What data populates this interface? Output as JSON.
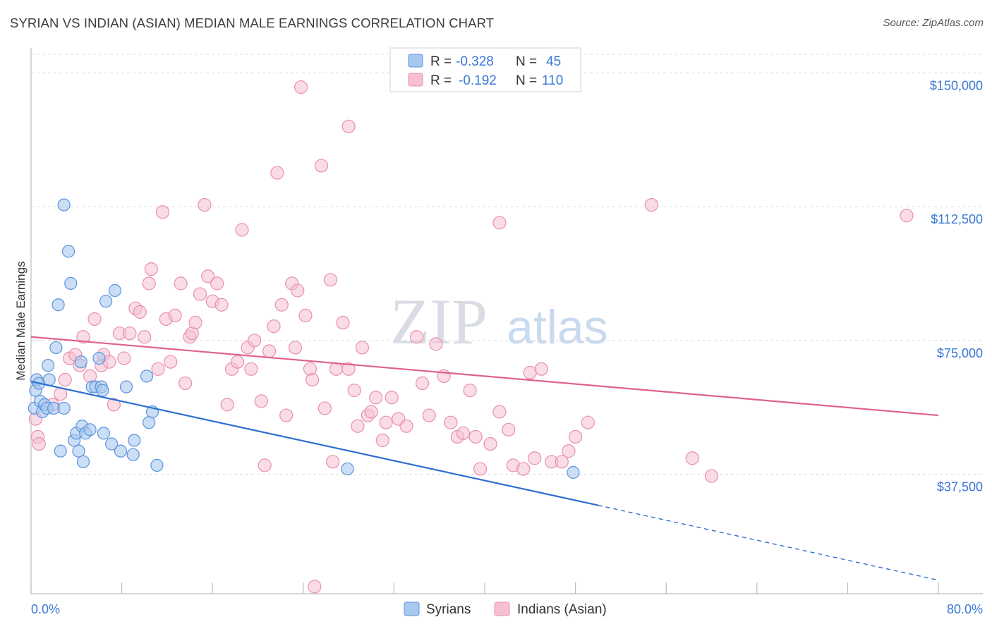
{
  "title": "SYRIAN VS INDIAN (ASIAN) MEDIAN MALE EARNINGS CORRELATION CHART",
  "source": "Source: ZipAtlas.com",
  "watermark": {
    "part1": "ZIP",
    "part2": "atlas"
  },
  "colors": {
    "blue_fill": "#a9c8ef",
    "blue_stroke": "#5a94dc",
    "blue_line": "#2e6fd1",
    "pink_fill": "#f6c0d1",
    "pink_stroke": "#e890ab",
    "pink_line": "#e0628c",
    "grid": "#dcdcdc",
    "tick_text": "#3a78d6"
  },
  "legend": {
    "rows": [
      {
        "r_label": "R =",
        "r_value": "-0.328",
        "n_label": "N =",
        "n_value": "45"
      },
      {
        "r_label": "R =",
        "r_value": "-0.192",
        "n_label": "N =",
        "n_value": "110"
      }
    ]
  },
  "bottom_legend": {
    "syrians": "Syrians",
    "indians": "Indians (Asian)"
  },
  "chart_data": {
    "type": "scatter",
    "title": "SYRIAN VS INDIAN (ASIAN) MEDIAN MALE EARNINGS CORRELATION CHART",
    "xlabel": "",
    "ylabel": "Median Male Earnings",
    "xlim": [
      0,
      80
    ],
    "ylim": [
      4000,
      157000
    ],
    "x_tick_labels": {
      "left": "0.0%",
      "right": "80.0%"
    },
    "y_ticks": [
      {
        "value": 37500,
        "label": "$37,500"
      },
      {
        "value": 75000,
        "label": "$75,000"
      },
      {
        "value": 112500,
        "label": "$112,500"
      },
      {
        "value": 150000,
        "label": "$150,000"
      }
    ],
    "series": [
      {
        "name": "Syrians",
        "r": -0.328,
        "n": 45,
        "trend": {
          "x0": 0,
          "y0": 63500,
          "x1": 50,
          "y1": 28800,
          "dash_to_x": 80,
          "dash_to_y": 7800
        },
        "points": [
          [
            0.3,
            56
          ],
          [
            0.4,
            61
          ],
          [
            0.5,
            64
          ],
          [
            0.7,
            63
          ],
          [
            0.8,
            58
          ],
          [
            1.0,
            55
          ],
          [
            1.2,
            57
          ],
          [
            1.4,
            56
          ],
          [
            1.5,
            68
          ],
          [
            1.6,
            64
          ],
          [
            2.0,
            56
          ],
          [
            2.2,
            73
          ],
          [
            2.4,
            85
          ],
          [
            2.6,
            44
          ],
          [
            2.9,
            113
          ],
          [
            3.3,
            100
          ],
          [
            3.5,
            91
          ],
          [
            3.8,
            47
          ],
          [
            4.0,
            49
          ],
          [
            4.2,
            44
          ],
          [
            4.5,
            51
          ],
          [
            4.6,
            41
          ],
          [
            4.8,
            49
          ],
          [
            5.2,
            50
          ],
          [
            5.4,
            62
          ],
          [
            5.7,
            62
          ],
          [
            6.0,
            70
          ],
          [
            6.2,
            62
          ],
          [
            6.4,
            49
          ],
          [
            6.6,
            86
          ],
          [
            7.1,
            46
          ],
          [
            7.4,
            89
          ],
          [
            7.9,
            44
          ],
          [
            8.4,
            62
          ],
          [
            9.0,
            43
          ],
          [
            9.1,
            47
          ],
          [
            10.2,
            65
          ],
          [
            10.4,
            52
          ],
          [
            10.7,
            55
          ],
          [
            11.1,
            40
          ],
          [
            6.3,
            61
          ],
          [
            2.9,
            56
          ],
          [
            4.4,
            69
          ],
          [
            27.9,
            39
          ],
          [
            47.8,
            38
          ]
        ]
      },
      {
        "name": "Indians (Asian)",
        "r": -0.192,
        "n": 110,
        "trend": {
          "x0": 0,
          "y0": 76000,
          "x1": 80,
          "y1": 54000
        },
        "points": [
          [
            0.4,
            53
          ],
          [
            0.6,
            48
          ],
          [
            0.7,
            46
          ],
          [
            1.9,
            57
          ],
          [
            2.6,
            60
          ],
          [
            3.0,
            64
          ],
          [
            3.4,
            70
          ],
          [
            3.9,
            71
          ],
          [
            4.3,
            68
          ],
          [
            4.6,
            76
          ],
          [
            5.2,
            65
          ],
          [
            5.6,
            81
          ],
          [
            6.2,
            68
          ],
          [
            6.4,
            71
          ],
          [
            6.9,
            69
          ],
          [
            7.3,
            57
          ],
          [
            7.8,
            77
          ],
          [
            8.2,
            70
          ],
          [
            8.7,
            77
          ],
          [
            9.2,
            84
          ],
          [
            9.6,
            83
          ],
          [
            10.0,
            76
          ],
          [
            10.4,
            91
          ],
          [
            10.6,
            95
          ],
          [
            11.2,
            67
          ],
          [
            11.6,
            111
          ],
          [
            11.9,
            81
          ],
          [
            12.3,
            69
          ],
          [
            12.7,
            82
          ],
          [
            13.2,
            91
          ],
          [
            13.6,
            63
          ],
          [
            14.0,
            76
          ],
          [
            14.2,
            77
          ],
          [
            14.5,
            80
          ],
          [
            14.9,
            88
          ],
          [
            15.3,
            113
          ],
          [
            15.6,
            93
          ],
          [
            16.0,
            86
          ],
          [
            16.4,
            91
          ],
          [
            16.8,
            85
          ],
          [
            17.3,
            57
          ],
          [
            17.7,
            67
          ],
          [
            18.2,
            69
          ],
          [
            18.6,
            106
          ],
          [
            19.1,
            73
          ],
          [
            19.4,
            67
          ],
          [
            19.7,
            75
          ],
          [
            20.3,
            58
          ],
          [
            20.6,
            40
          ],
          [
            21.0,
            72
          ],
          [
            21.4,
            79
          ],
          [
            21.7,
            122
          ],
          [
            22.1,
            85
          ],
          [
            22.5,
            54
          ],
          [
            23.0,
            91
          ],
          [
            23.3,
            73
          ],
          [
            23.5,
            89
          ],
          [
            24.2,
            82
          ],
          [
            24.6,
            67
          ],
          [
            24.8,
            64
          ],
          [
            25.6,
            124
          ],
          [
            25.9,
            56
          ],
          [
            26.4,
            92
          ],
          [
            26.6,
            41
          ],
          [
            26.9,
            67
          ],
          [
            27.5,
            80
          ],
          [
            28.0,
            67
          ],
          [
            28.5,
            61
          ],
          [
            28.8,
            51
          ],
          [
            29.2,
            73
          ],
          [
            29.7,
            54
          ],
          [
            30.0,
            55
          ],
          [
            30.4,
            59
          ],
          [
            31.0,
            47
          ],
          [
            31.3,
            52
          ],
          [
            31.8,
            59
          ],
          [
            32.4,
            53
          ],
          [
            33.1,
            51
          ],
          [
            34.0,
            76
          ],
          [
            34.5,
            63
          ],
          [
            35.1,
            54
          ],
          [
            35.7,
            74
          ],
          [
            36.4,
            65
          ],
          [
            37.0,
            52
          ],
          [
            37.6,
            48
          ],
          [
            38.1,
            49
          ],
          [
            38.7,
            61
          ],
          [
            39.2,
            48
          ],
          [
            39.6,
            39
          ],
          [
            40.5,
            46
          ],
          [
            41.3,
            55
          ],
          [
            42.1,
            50
          ],
          [
            42.5,
            40
          ],
          [
            43.4,
            39
          ],
          [
            44.0,
            66
          ],
          [
            44.4,
            42
          ],
          [
            45.0,
            67
          ],
          [
            45.9,
            41
          ],
          [
            46.8,
            41
          ],
          [
            47.4,
            44
          ],
          [
            48.0,
            48
          ],
          [
            49.1,
            52
          ],
          [
            54.7,
            113
          ],
          [
            58.3,
            42
          ],
          [
            60.0,
            37
          ],
          [
            77.2,
            110
          ],
          [
            23.8,
            146
          ],
          [
            28.0,
            135
          ],
          [
            25.0,
            6
          ],
          [
            41.3,
            108
          ]
        ]
      }
    ]
  }
}
